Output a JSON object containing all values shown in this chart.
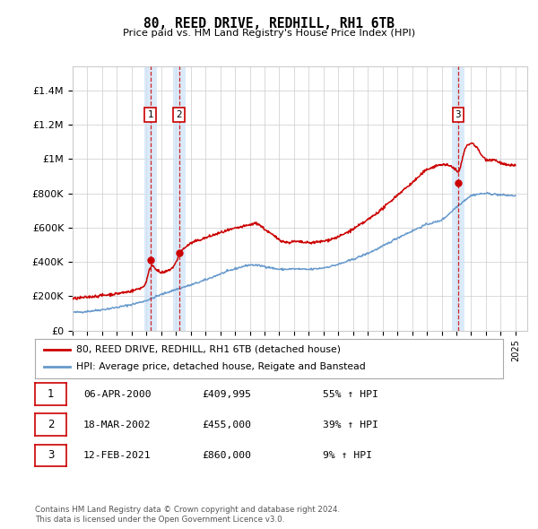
{
  "title": "80, REED DRIVE, REDHILL, RH1 6TB",
  "subtitle": "Price paid vs. HM Land Registry's House Price Index (HPI)",
  "ylabel_ticks": [
    "£0",
    "£200K",
    "£400K",
    "£600K",
    "£800K",
    "£1M",
    "£1.2M",
    "£1.4M"
  ],
  "ytick_vals": [
    0,
    200000,
    400000,
    600000,
    800000,
    1000000,
    1200000,
    1400000
  ],
  "ylim": [
    0,
    1540000
  ],
  "xlim_start": 1995.0,
  "xlim_end": 2025.8,
  "sales": [
    {
      "label": "1",
      "date": 2000.27,
      "price": 409995,
      "date_str": "06-APR-2000",
      "price_str": "£409,995",
      "pct_str": "55% ↑ HPI"
    },
    {
      "label": "2",
      "date": 2002.21,
      "price": 455000,
      "date_str": "18-MAR-2002",
      "price_str": "£455,000",
      "pct_str": "39% ↑ HPI"
    },
    {
      "label": "3",
      "date": 2021.12,
      "price": 860000,
      "date_str": "12-FEB-2021",
      "price_str": "£860,000",
      "pct_str": "9% ↑ HPI"
    }
  ],
  "legend_line1": "80, REED DRIVE, REDHILL, RH1 6TB (detached house)",
  "legend_line2": "HPI: Average price, detached house, Reigate and Banstead",
  "footer1": "Contains HM Land Registry data © Crown copyright and database right 2024.",
  "footer2": "This data is licensed under the Open Government Licence v3.0.",
  "red_color": "#cc0000",
  "blue_color": "#6699cc",
  "shade_color": "#d0e4f7",
  "background_color": "#ffffff",
  "grid_color": "#cccccc",
  "hpi_knots_x": [
    1995,
    1996,
    1997,
    1998,
    1999,
    2000,
    2001,
    2002,
    2003,
    2004,
    2005,
    2006,
    2007,
    2008,
    2009,
    2010,
    2011,
    2012,
    2013,
    2014,
    2015,
    2016,
    2017,
    2018,
    2019,
    2020,
    2021,
    2022,
    2023,
    2024,
    2025
  ],
  "hpi_knots_y": [
    105000,
    112000,
    122000,
    135000,
    152000,
    175000,
    210000,
    240000,
    265000,
    295000,
    330000,
    360000,
    385000,
    375000,
    355000,
    360000,
    355000,
    365000,
    385000,
    415000,
    450000,
    490000,
    540000,
    580000,
    620000,
    640000,
    720000,
    790000,
    800000,
    790000,
    785000
  ],
  "price_knots_x": [
    1995,
    1996,
    1997,
    1998,
    1999,
    2000.0,
    2000.27,
    2000.6,
    2001.0,
    2001.5,
    2002.0,
    2002.21,
    2002.7,
    2003,
    2004,
    2005,
    2006,
    2007,
    2007.5,
    2008,
    2008.5,
    2009,
    2009.5,
    2010,
    2011,
    2012,
    2013,
    2014,
    2015,
    2016,
    2017,
    2018,
    2019,
    2020,
    2021.0,
    2021.12,
    2021.5,
    2022,
    2022.3,
    2022.7,
    2023,
    2023.5,
    2024,
    2024.5,
    2025
  ],
  "price_knots_y": [
    185000,
    195000,
    205000,
    215000,
    230000,
    260000,
    409995,
    360000,
    330000,
    350000,
    380000,
    455000,
    490000,
    510000,
    540000,
    570000,
    595000,
    615000,
    630000,
    590000,
    560000,
    530000,
    510000,
    520000,
    510000,
    520000,
    545000,
    590000,
    645000,
    710000,
    790000,
    860000,
    940000,
    970000,
    950000,
    860000,
    1060000,
    1100000,
    1080000,
    1020000,
    990000,
    1000000,
    975000,
    960000,
    965000
  ]
}
